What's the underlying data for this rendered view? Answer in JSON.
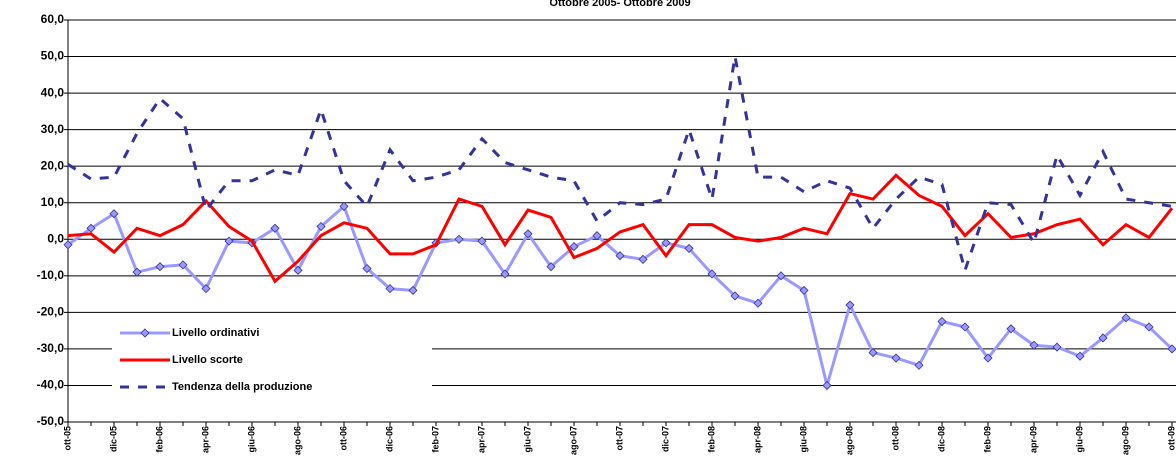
{
  "chart_data": {
    "type": "line",
    "title": "Ottobre 2005- Ottobre 2009",
    "categories": [
      "ott-05",
      null,
      "dic-05",
      null,
      "feb-06",
      null,
      "apr-06",
      null,
      "giu-06",
      null,
      "ago-06",
      null,
      "ott-06",
      null,
      "dic-06",
      null,
      "feb-07",
      null,
      "apr-07",
      null,
      "giu-07",
      null,
      "ago-07",
      null,
      "ott-07",
      null,
      "dic-07",
      null,
      "feb-08",
      null,
      "apr-08",
      null,
      "giu-08",
      null,
      "ago-08",
      null,
      "ott-08",
      null,
      "dic-08",
      null,
      "feb-09",
      null,
      "apr-09",
      null,
      "giu-09",
      null,
      "ago-09",
      null,
      "ott-09"
    ],
    "series": [
      {
        "name": "Livello ordinativi",
        "color": "#9999ff",
        "marker": "diamond",
        "dashed": false,
        "width": 3,
        "values": [
          -1.5,
          3,
          7,
          -9,
          -7.5,
          -7,
          -13.5,
          -0.5,
          -1,
          3,
          -8.5,
          3.5,
          9,
          -8,
          -13.5,
          -14,
          -1,
          0,
          -0.5,
          -9.5,
          1.5,
          -7.5,
          -2,
          1,
          -4.5,
          -5.5,
          -1,
          -2.5,
          -9.5,
          -15.5,
          -17.5,
          -10,
          -14,
          -40,
          -18,
          -31,
          -32.5,
          -34.5,
          -22.5,
          -24,
          -32.5,
          -24.5,
          -29,
          -29.5,
          -32,
          -27,
          -21.5,
          -24,
          -30
        ]
      },
      {
        "name": "Livello scorte",
        "color": "#ff0000",
        "marker": null,
        "dashed": false,
        "width": 3,
        "values": [
          1,
          1.5,
          -3.5,
          3,
          1,
          4,
          10.5,
          3.5,
          -0.5,
          -11.5,
          -6,
          1,
          4.5,
          3,
          -4,
          -4,
          -1.5,
          11,
          9,
          -1.5,
          8,
          6,
          -5,
          -2.5,
          2,
          4,
          -4.5,
          4,
          4,
          0.5,
          -0.5,
          0.5,
          3,
          1.5,
          12.5,
          11,
          17.5,
          12,
          9,
          1,
          7,
          0.5,
          1.5,
          4,
          5.5,
          -1.5,
          4,
          0.5,
          8.5
        ]
      },
      {
        "name": "Tendenza della produzione",
        "color": "#333399",
        "marker": null,
        "dashed": true,
        "width": 3,
        "values": [
          20.5,
          16.5,
          17,
          29,
          38.5,
          33,
          8,
          16,
          16,
          19,
          17.5,
          35.5,
          16,
          9,
          24.5,
          16,
          17,
          19,
          27.5,
          21,
          19,
          17,
          16,
          5,
          10,
          9.5,
          11,
          30,
          11,
          50,
          17,
          17,
          13,
          16,
          14,
          3,
          11,
          17,
          15,
          -8.5,
          10,
          9.5,
          -1,
          23,
          12,
          24,
          11,
          10,
          9
        ]
      }
    ],
    "ylim": [
      -50,
      60
    ],
    "yticks": [
      {
        "value": -50,
        "label": "-50,0"
      },
      {
        "value": -40,
        "label": "-40,0"
      },
      {
        "value": -30,
        "label": "-30,0"
      },
      {
        "value": -20,
        "label": "-20,0"
      },
      {
        "value": -10,
        "label": "-10,0"
      },
      {
        "value": 0,
        "label": "0,0"
      },
      {
        "value": 10,
        "label": "10,0"
      },
      {
        "value": 20,
        "label": "20,0"
      },
      {
        "value": 30,
        "label": "30,0"
      },
      {
        "value": 40,
        "label": "40,0"
      },
      {
        "value": 50,
        "label": "50,0"
      },
      {
        "value": 60,
        "label": "60,0"
      }
    ],
    "grid": true,
    "legend": "lower-left"
  }
}
